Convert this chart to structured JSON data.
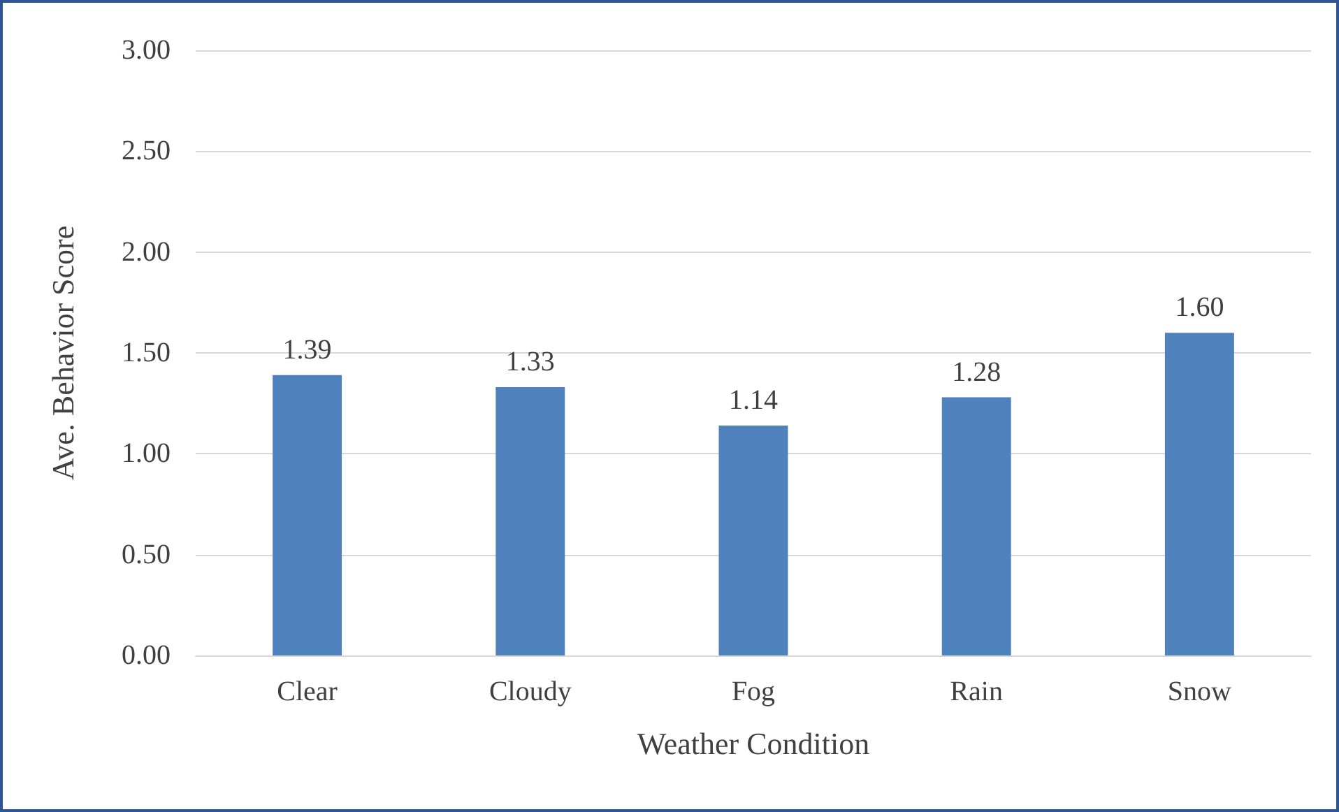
{
  "chart_data": {
    "type": "bar",
    "xlabel": "Weather Condition",
    "ylabel": "Ave. Behavior Score",
    "categories": [
      "Clear",
      "Cloudy",
      "Fog",
      "Rain",
      "Snow"
    ],
    "values": [
      1.39,
      1.33,
      1.14,
      1.28,
      1.6
    ],
    "color": "#4f81bd",
    "value_labels": [
      "1.39",
      "1.33",
      "1.14",
      "1.28",
      "1.60"
    ],
    "ylim": [
      0,
      3
    ],
    "yticks": [
      {
        "value": 0,
        "label": "0.00"
      },
      {
        "value": 0.5,
        "label": "0.50"
      },
      {
        "value": 1,
        "label": "1.00"
      },
      {
        "value": 1.5,
        "label": "1.50"
      },
      {
        "value": 2,
        "label": "2.00"
      },
      {
        "value": 2.5,
        "label": "2.50"
      },
      {
        "value": 3,
        "label": "3.00"
      }
    ],
    "grid": "y"
  }
}
